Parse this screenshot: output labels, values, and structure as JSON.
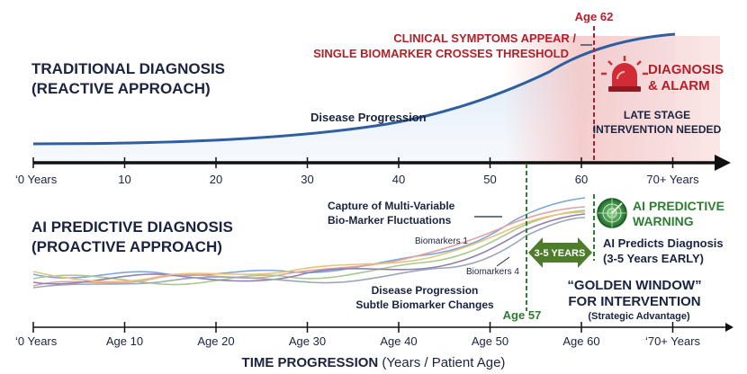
{
  "top": {
    "heading_line1": "TRADITIONAL DIAGNOSIS",
    "heading_line2": "(REACTIVE APPROACH)",
    "curve_label": "Disease Progression",
    "symptoms_line1": "CLINICAL SYMPTOMS APPEAR /",
    "symptoms_line2": "SINGLE BIOMARKER CROSSES THRESHOLD",
    "event_age": "Age 62",
    "alarm_line1": "DIAGNOSIS",
    "alarm_line2": "& ALARM",
    "late_line1": "LATE STAGE",
    "late_line2": "INTERVENTION NEEDED",
    "axis_ticks": [
      "‘0 Years",
      "10",
      "20",
      "30",
      "40",
      "50",
      "60",
      "70+ Years"
    ]
  },
  "bottom": {
    "heading_line1": "AI PREDICTIVE DIAGNOSIS",
    "heading_line2": "(PROACTIVE APPROACH)",
    "capture_line1": "Capture of Multi-Variable",
    "capture_line2": "Bio-Marker Fluctuations",
    "biomarkers1": "Biomarkers 1",
    "biomarkers4": "Biomarkers 4",
    "progression_line1": "Disease Progression",
    "progression_line2": "Subtle Biomarker Changes",
    "detect_age": "Age 57",
    "window_years": "3-5 YEARS",
    "ai_warning_line1": "AI PREDICTIVE",
    "ai_warning_line2": "WARNING",
    "ai_predicts_line1": "AI Predicts Diagnosis",
    "ai_predicts_line2": "(3-5 Years EARLY)",
    "golden_line1": "“GOLDEN WINDOW”",
    "golden_line2": "FOR INTERVENTION",
    "golden_line3": "(Strategic Advantage)",
    "axis_ticks": [
      "‘0 Years",
      "Age 10",
      "Age 20",
      "Age 30",
      "Age 40",
      "Age 50",
      "Age 60",
      "‘70+ Years"
    ],
    "axis_title_bold": "TIME PROGRESSION",
    "axis_title_rest": " (Years / Patient Age)"
  },
  "colors": {
    "navy": "#1a2440",
    "progression_blue": "#2f5f9e",
    "alarm_red": "#b3202a",
    "ai_green": "#2e7d32",
    "window_green": "#4d7c2b"
  },
  "icons": [
    "siren-alarm-icon",
    "radar-icon"
  ]
}
